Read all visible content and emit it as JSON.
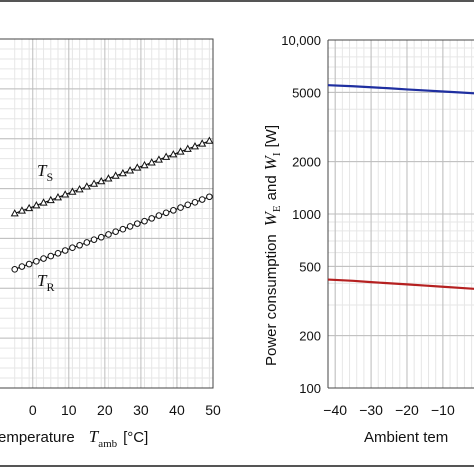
{
  "chart_data": [
    {
      "type": "line",
      "xlabel": "Ambient temperature  T_amb [°C]",
      "xlabel_visible": "emperature",
      "xlabel_symbol": "T",
      "xlabel_symbol_sub": "amb",
      "xlabel_unit": "[°C]",
      "x_ticks": [
        "0",
        "10",
        "20",
        "30",
        "40",
        "50"
      ],
      "xlim": [
        -5,
        50
      ],
      "grid": true,
      "series": [
        {
          "name": "T_S",
          "label_symbol": "T",
          "label_sub": "S",
          "marker": "triangle",
          "x": [
            -5,
            -3,
            -1,
            1,
            3,
            5,
            7,
            9,
            11,
            13,
            15,
            17,
            19,
            21,
            23,
            25,
            27,
            29,
            31,
            33,
            35,
            37,
            39,
            41,
            43,
            45,
            47,
            49
          ],
          "y_norm": [
            0.5,
            0.508,
            0.515,
            0.523,
            0.531,
            0.538,
            0.546,
            0.554,
            0.562,
            0.569,
            0.577,
            0.585,
            0.592,
            0.6,
            0.608,
            0.615,
            0.623,
            0.631,
            0.638,
            0.646,
            0.654,
            0.662,
            0.669,
            0.677,
            0.685,
            0.692,
            0.7,
            0.708
          ]
        },
        {
          "name": "T_R",
          "label_symbol": "T",
          "label_sub": "R",
          "marker": "circle",
          "x": [
            -5,
            -3,
            -1,
            1,
            3,
            5,
            7,
            9,
            11,
            13,
            15,
            17,
            19,
            21,
            23,
            25,
            27,
            29,
            31,
            33,
            35,
            37,
            39,
            41,
            43,
            45,
            47,
            49
          ],
          "y_norm": [
            0.34,
            0.348,
            0.355,
            0.363,
            0.371,
            0.378,
            0.386,
            0.394,
            0.402,
            0.409,
            0.417,
            0.425,
            0.432,
            0.44,
            0.448,
            0.455,
            0.463,
            0.471,
            0.478,
            0.486,
            0.494,
            0.502,
            0.509,
            0.517,
            0.525,
            0.532,
            0.54,
            0.548
          ]
        }
      ]
    },
    {
      "type": "line",
      "y_scale": "log",
      "ylabel": "Power consumption  W_E and W_I [W]",
      "ylabel_text": "Power consumption",
      "ylabel_w1": "W",
      "ylabel_w1_sub": "E",
      "ylabel_and": "and",
      "ylabel_w2": "W",
      "ylabel_w2_sub": "I",
      "ylabel_unit": "[W]",
      "xlabel_visible": "Ambient tem",
      "ylim": [
        100,
        10000
      ],
      "y_ticks": [
        "10,000",
        "5000",
        "2000",
        "1000",
        "500",
        "200",
        "100"
      ],
      "y_tick_values": [
        10000,
        5000,
        2000,
        1000,
        500,
        200,
        100
      ],
      "x_ticks": [
        "−40",
        "−30",
        "−20",
        "−10"
      ],
      "x_tick_values": [
        -40,
        -30,
        -20,
        -10
      ],
      "xlim": [
        -42,
        0
      ],
      "grid": true,
      "series": [
        {
          "name": "W_E",
          "color": "#1f2fa0",
          "x": [
            -42,
            -35,
            -30,
            -25,
            -20,
            -15,
            -10,
            -5,
            0
          ],
          "y": [
            5500,
            5420,
            5350,
            5280,
            5200,
            5130,
            5060,
            4990,
            4920
          ]
        },
        {
          "name": "W_I",
          "color": "#b52020",
          "x": [
            -42,
            -35,
            -30,
            -25,
            -20,
            -15,
            -10,
            -5,
            0
          ],
          "y": [
            420,
            413,
            406,
            400,
            394,
            388,
            382,
            376,
            370
          ]
        }
      ]
    }
  ]
}
